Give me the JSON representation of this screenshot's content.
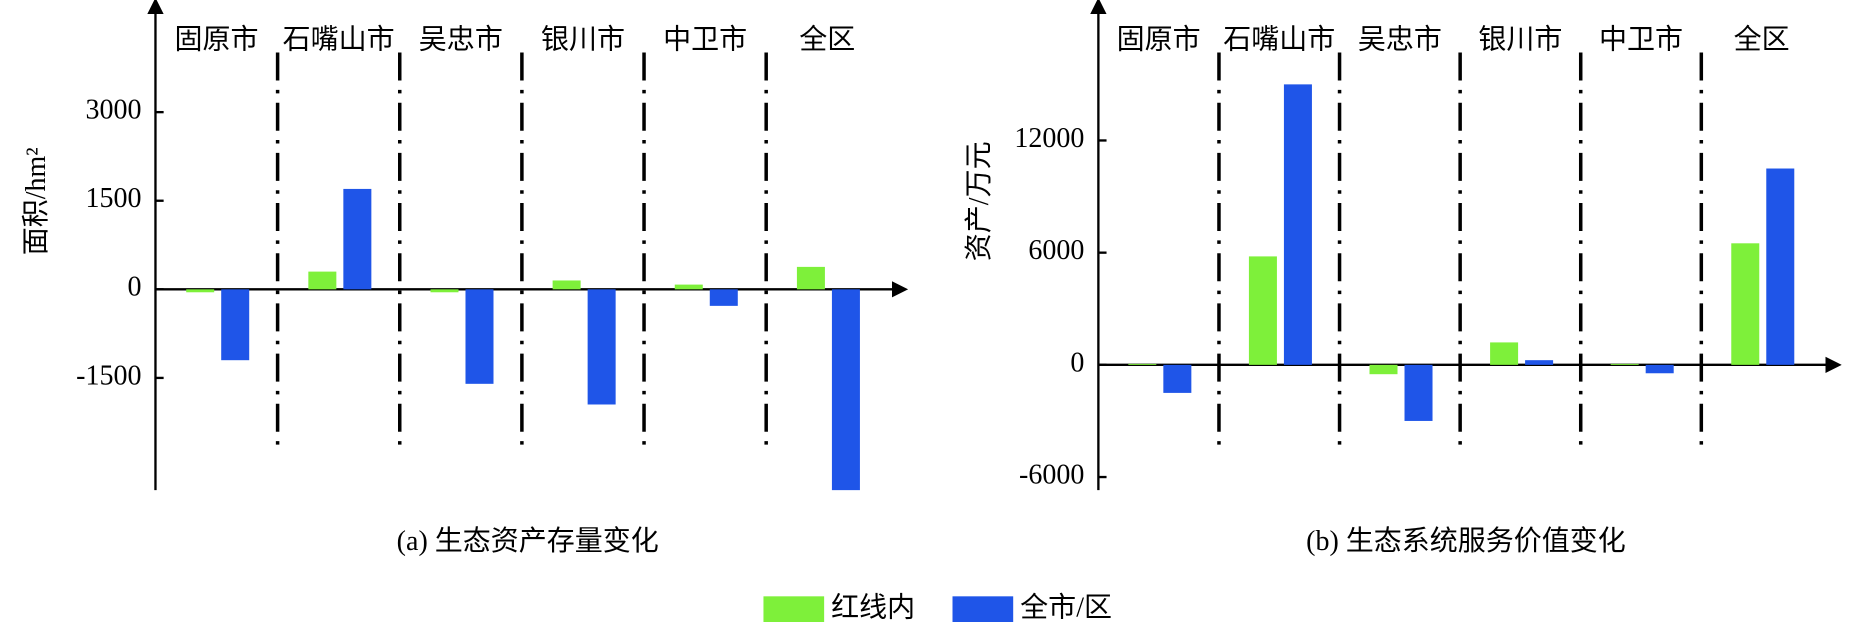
{
  "chart_data": [
    {
      "type": "bar",
      "title": "(a) 生态资产存量变化",
      "ylabel": "面积/hm²",
      "categories": [
        "固原市",
        "石嘴山市",
        "吴忠市",
        "银川市",
        "中卫市",
        "全区"
      ],
      "series": [
        {
          "color": "#7ef03a",
          "values": [
            -50,
            300,
            -50,
            150,
            80,
            380
          ]
        },
        {
          "color": "#1f55e8",
          "values": [
            -1200,
            1700,
            -1600,
            -1950,
            -280,
            -3400
          ]
        }
      ],
      "ylim": [
        -3400,
        4800
      ],
      "yticks": [
        -1500,
        0,
        1500,
        3000
      ]
    },
    {
      "type": "bar",
      "title": "(b) 生态系统服务价值变化",
      "ylabel": "资产/万元",
      "categories": [
        "固原市",
        "石嘴山市",
        "吴忠市",
        "银川市",
        "中卫市",
        "全区"
      ],
      "series": [
        {
          "color": "#7ef03a",
          "values": [
            50,
            5800,
            -500,
            1200,
            50,
            6500
          ]
        },
        {
          "color": "#1f55e8",
          "values": [
            -1500,
            15000,
            -3000,
            250,
            -450,
            10500
          ]
        }
      ],
      "ylim": [
        -6700,
        19200
      ],
      "yticks": [
        -6000,
        0,
        6000,
        12000
      ]
    }
  ],
  "legend": [
    {
      "name": "红线内",
      "color": "#7ef03a"
    },
    {
      "name": "全市/区",
      "color": "#1f55e8"
    }
  ]
}
